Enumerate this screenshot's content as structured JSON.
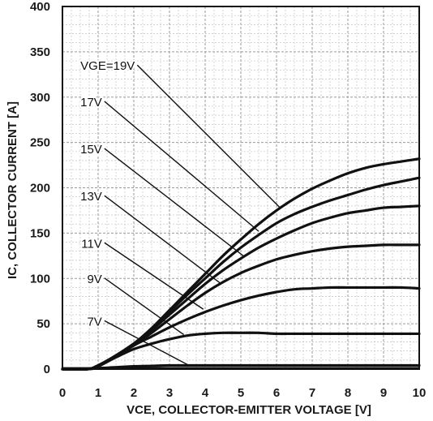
{
  "chart_data": {
    "type": "line",
    "xlabel": "VCE, COLLECTOR-EMITTER VOLTAGE [V]",
    "ylabel": "IC, COLLECTOR CURRENT [A]",
    "xlim": [
      0,
      10
    ],
    "ylim": [
      0,
      400
    ],
    "x_ticks": [
      "0",
      "1",
      "2",
      "3",
      "4",
      "5",
      "6",
      "7",
      "8",
      "9",
      "10"
    ],
    "y_ticks": [
      "0",
      "50",
      "100",
      "150",
      "200",
      "250",
      "300",
      "350",
      "400"
    ],
    "grid": "major and minor, dashed",
    "line_color": "#111111",
    "series": [
      {
        "name": "VGE=19V",
        "x": [
          0,
          0.7,
          1,
          1.5,
          2,
          2.5,
          3,
          3.5,
          4,
          4.5,
          5,
          5.5,
          6,
          6.5,
          7,
          7.5,
          8,
          8.5,
          9,
          9.5,
          10
        ],
        "y": [
          0,
          0,
          4,
          15,
          28,
          45,
          65,
          85,
          105,
          125,
          143,
          160,
          175,
          188,
          199,
          208,
          216,
          222,
          226,
          229,
          232
        ]
      },
      {
        "name": "17V",
        "x": [
          0,
          0.7,
          1,
          1.5,
          2,
          2.5,
          3,
          3.5,
          4,
          4.5,
          5,
          5.5,
          6,
          6.5,
          7,
          7.5,
          8,
          8.5,
          9,
          9.5,
          10
        ],
        "y": [
          0,
          0,
          4,
          15,
          28,
          44,
          63,
          82,
          100,
          118,
          134,
          148,
          161,
          171,
          179,
          186,
          192,
          198,
          203,
          207,
          211
        ]
      },
      {
        "name": "15V",
        "x": [
          0,
          0.7,
          1,
          1.5,
          2,
          2.5,
          3,
          3.5,
          4,
          4.5,
          5,
          5.5,
          6,
          6.5,
          7,
          7.5,
          8,
          8.5,
          9,
          9.5,
          10
        ],
        "y": [
          0,
          0,
          4,
          15,
          28,
          43,
          60,
          77,
          94,
          109,
          122,
          134,
          144,
          153,
          161,
          167,
          172,
          175,
          178,
          179,
          180
        ]
      },
      {
        "name": "13V",
        "x": [
          0,
          0.7,
          1,
          1.5,
          2,
          2.5,
          3,
          3.5,
          4,
          4.5,
          5,
          5.5,
          6,
          6.5,
          7,
          7.5,
          8,
          8.5,
          9,
          9.5,
          10
        ],
        "y": [
          0,
          0,
          4,
          14,
          27,
          40,
          55,
          70,
          84,
          96,
          106,
          114,
          121,
          126,
          130,
          133,
          135,
          136,
          137,
          137,
          137
        ]
      },
      {
        "name": "11V",
        "x": [
          0,
          0.7,
          1,
          1.5,
          2,
          2.5,
          3,
          3.5,
          4,
          4.5,
          5,
          5.5,
          6,
          6.5,
          7,
          7.5,
          8,
          8.5,
          9,
          9.5,
          10
        ],
        "y": [
          0,
          0,
          4,
          14,
          26,
          36,
          46,
          55,
          63,
          70,
          76,
          81,
          85,
          88,
          89,
          90,
          90,
          90,
          90,
          90,
          89
        ]
      },
      {
        "name": "9V",
        "x": [
          0,
          0.7,
          1,
          1.5,
          2,
          2.5,
          3,
          3.5,
          4,
          4.5,
          5,
          5.5,
          6,
          6.5,
          7,
          7.5,
          8,
          8.5,
          9,
          9.5,
          10
        ],
        "y": [
          0,
          0,
          3,
          13,
          22,
          28,
          33,
          37,
          39,
          40,
          40,
          40,
          39,
          39,
          39,
          39,
          39,
          39,
          39,
          39,
          39
        ]
      },
      {
        "name": "7V",
        "x": [
          0,
          0.7,
          1,
          1.5,
          2,
          2.5,
          3,
          3.5,
          4,
          5,
          6,
          7,
          8,
          9,
          10
        ],
        "y": [
          0,
          0,
          1,
          2,
          3,
          3.5,
          4,
          4,
          4,
          4,
          4,
          4,
          4,
          4,
          4
        ]
      }
    ],
    "annotations": [
      {
        "text": "VGE=19V",
        "series": "VGE=19V",
        "label_at": [
          2.03,
          330
        ],
        "arrow_to": [
          6.1,
          178
        ]
      },
      {
        "text": "17V",
        "series": "17V",
        "label_at": [
          1.11,
          290
        ],
        "arrow_to": [
          5.5,
          152
        ]
      },
      {
        "text": "15V",
        "series": "15V",
        "label_at": [
          1.11,
          238
        ],
        "arrow_to": [
          5.1,
          124
        ]
      },
      {
        "text": "13V",
        "series": "13V",
        "label_at": [
          1.11,
          186
        ],
        "arrow_to": [
          4.45,
          94
        ]
      },
      {
        "text": "11V",
        "series": "11V",
        "label_at": [
          1.11,
          134
        ],
        "arrow_to": [
          3.95,
          66
        ]
      },
      {
        "text": "9V",
        "series": "9V",
        "label_at": [
          1.11,
          95
        ],
        "arrow_to": [
          3.4,
          38
        ]
      },
      {
        "text": "7V",
        "series": "7V",
        "label_at": [
          1.11,
          48
        ],
        "arrow_to": [
          3.5,
          5
        ]
      }
    ]
  }
}
